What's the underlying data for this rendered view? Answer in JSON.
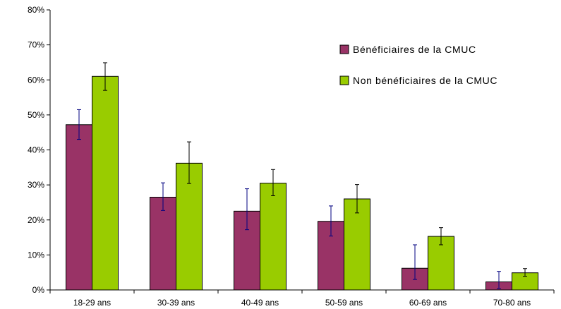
{
  "chart_data": {
    "type": "bar",
    "categories": [
      "18-29 ans",
      "30-39 ans",
      "40-49 ans",
      "50-59 ans",
      "60-69 ans",
      "70-80 ans"
    ],
    "series": [
      {
        "name": "Bénéficiaires de la CMUC",
        "color": "#993366",
        "error_color": "#000080",
        "values": [
          47.2,
          26.5,
          22.5,
          19.6,
          6.2,
          2.3
        ],
        "error_low": [
          43.0,
          22.7,
          17.2,
          15.4,
          3.0,
          0.4
        ],
        "error_high": [
          51.5,
          30.6,
          28.9,
          24.0,
          12.9,
          5.3
        ]
      },
      {
        "name": "Non bénéficiaires de la CMUC",
        "color": "#99CC00",
        "error_color": "#000000",
        "values": [
          61.0,
          36.2,
          30.5,
          26.0,
          15.3,
          4.9
        ],
        "error_low": [
          57.0,
          30.4,
          26.9,
          22.0,
          12.9,
          3.9
        ],
        "error_high": [
          64.9,
          42.3,
          34.4,
          30.1,
          17.8,
          6.1
        ]
      }
    ],
    "yticks": [
      "0%",
      "10%",
      "20%",
      "30%",
      "40%",
      "50%",
      "60%",
      "70%",
      "80%"
    ],
    "ylim": [
      0,
      80
    ],
    "grid": false,
    "legend_position": "top-right",
    "title": "",
    "xlabel": "",
    "ylabel": ""
  }
}
